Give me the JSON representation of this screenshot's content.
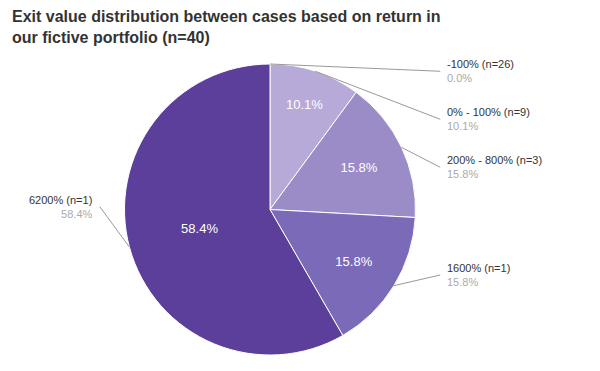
{
  "chart_data": {
    "type": "pie",
    "title": "Exit value distribution between cases based on return in\nour fictive portfolio (n=40)",
    "categories": [
      "-100% (n=26)",
      "0% - 100% (n=9)",
      "200% - 800% (n=3)",
      "1600% (n=1)",
      "6200% (n=1)"
    ],
    "values": [
      0.001,
      10.1,
      15.8,
      15.8,
      58.4
    ],
    "value_labels": [
      "0.0%",
      "10.1%",
      "15.8%",
      "15.8%",
      "58.4%"
    ],
    "wedge_labels": [
      null,
      "10.1%",
      "15.8%",
      "15.8%",
      "58.4%"
    ],
    "colors": [
      "#c8bfe7",
      "#b8aad8",
      "#9b8cc8",
      "#7b6ab8",
      "#5b3f9a"
    ]
  }
}
